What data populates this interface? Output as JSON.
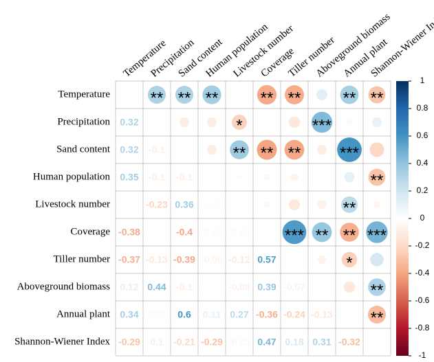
{
  "chart_data": {
    "type": "corrplot",
    "categories": [
      "Temperature",
      "Precipitation",
      "Sand content",
      "Human population",
      "Livestock number",
      "Coverage",
      "Tiller number",
      "Aboveground biomass",
      "Annual plant",
      "Shannon-Wiener Index"
    ],
    "values": [
      [],
      [
        0.32
      ],
      [
        0.32,
        -0.1
      ],
      [
        0.35,
        -0.1,
        -0.1
      ],
      [
        0.01,
        -0.23,
        0.36,
        0.02
      ],
      [
        -0.38,
        0.01,
        -0.4,
        -0.04,
        -0.04
      ],
      [
        -0.37,
        -0.13,
        -0.39,
        -0.06,
        -0.12,
        0.57
      ],
      [
        0.12,
        0.44,
        -0.1,
        0.01,
        -0.08,
        0.39,
        -0.07
      ],
      [
        0.34,
        0.03,
        0.6,
        0.11,
        0.27,
        -0.36,
        -0.24,
        -0.13
      ],
      [
        -0.29,
        0.1,
        -0.21,
        -0.29,
        -0.05,
        0.47,
        0.18,
        0.31,
        -0.32
      ]
    ],
    "stars": [
      [],
      [
        "**"
      ],
      [
        "**",
        null
      ],
      [
        "**",
        null,
        null
      ],
      [
        null,
        "*",
        "**",
        null
      ],
      [
        "**",
        null,
        "**",
        null,
        null
      ],
      [
        "**",
        null,
        "**",
        null,
        null,
        "***"
      ],
      [
        null,
        "***",
        null,
        null,
        null,
        "**",
        null
      ],
      [
        "**",
        null,
        "***",
        null,
        "**",
        "**",
        "*",
        null
      ],
      [
        "**",
        null,
        null,
        "**",
        null,
        "***",
        null,
        "**",
        "**"
      ]
    ],
    "colorscale": [
      "#67001F",
      "#B2182B",
      "#D6604D",
      "#F4A582",
      "#FDDBC7",
      "#FFFFFF",
      "#D1E5F0",
      "#92C5DE",
      "#4393C3",
      "#2166AC",
      "#053061"
    ],
    "ylim": [
      -1,
      1
    ],
    "yticks": [
      -1,
      -0.8,
      -0.6,
      -0.4,
      -0.2,
      0,
      0.2,
      0.4,
      0.6,
      0.8,
      1
    ]
  }
}
